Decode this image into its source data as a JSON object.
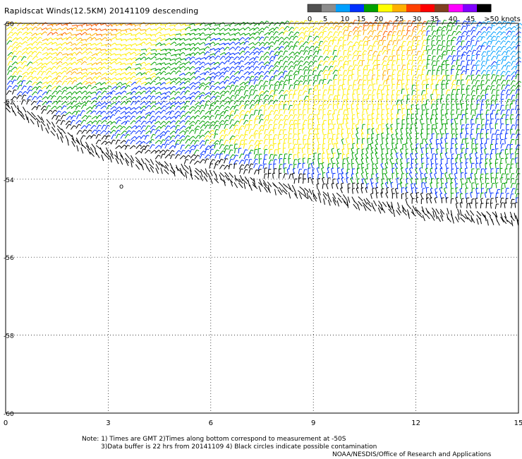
{
  "title": "Rapidscat Winds(12.5KM) 20141109 descending",
  "legend": {
    "labels": [
      "0",
      "5",
      "10",
      "15",
      "20",
      "25",
      "30",
      "35",
      "40",
      "45",
      ">50 knots"
    ],
    "colors": [
      "#505050",
      "#8c8c8c",
      "#00a0ff",
      "#0030ff",
      "#00a000",
      "#ffff00",
      "#ffb000",
      "#ff4000",
      "#ff0000",
      "#804020",
      "#ff00ff",
      "#8000ff",
      "#000000"
    ]
  },
  "map": {
    "lat_ticks": [
      "-50",
      "-52",
      "-54",
      "-56",
      "-58",
      "-60"
    ],
    "lon_ticks": [
      "0",
      "3",
      "6",
      "9",
      "12",
      "15"
    ],
    "lat_range": [
      -60,
      -50
    ],
    "lon_range": [
      0,
      15
    ]
  },
  "notes": {
    "line1": "Note: 1) Times are GMT 2)Times along bottom correspond to measurement at -50S",
    "line2": "3)Data buffer is 22 hrs from 20141109 4) Black circles indicate possible contamination",
    "line3": "NOAA/NESDIS/Office of Research and Applications",
    "circle_marker": "o"
  }
}
